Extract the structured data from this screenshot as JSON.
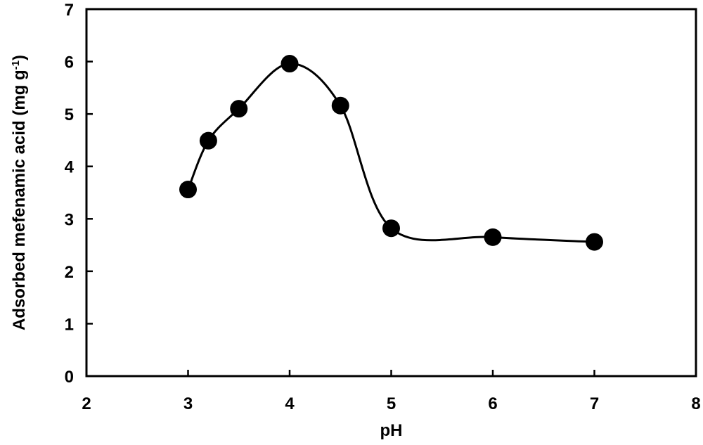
{
  "chart_data": {
    "type": "line",
    "xlabel": "pH",
    "ylabel_main": "Adsorbed mefenamic acid (mg g",
    "ylabel_sup": "-1",
    "ylabel_close": ")",
    "xlim": [
      2,
      8
    ],
    "ylim": [
      0,
      7
    ],
    "xticks": [
      2,
      3,
      4,
      5,
      6,
      7,
      8
    ],
    "yticks": [
      0,
      1,
      2,
      3,
      4,
      5,
      6,
      7
    ],
    "grid": false,
    "marker": "filled-circle",
    "smooth": true,
    "colors": {
      "line": "#000000",
      "marker": "#000000"
    },
    "series": [
      {
        "x": [
          3.0,
          3.2,
          3.5,
          4.0,
          4.5,
          5.0,
          6.0,
          7.0
        ],
        "y": [
          3.56,
          4.49,
          5.1,
          5.96,
          5.16,
          2.82,
          2.65,
          2.56
        ]
      }
    ]
  }
}
